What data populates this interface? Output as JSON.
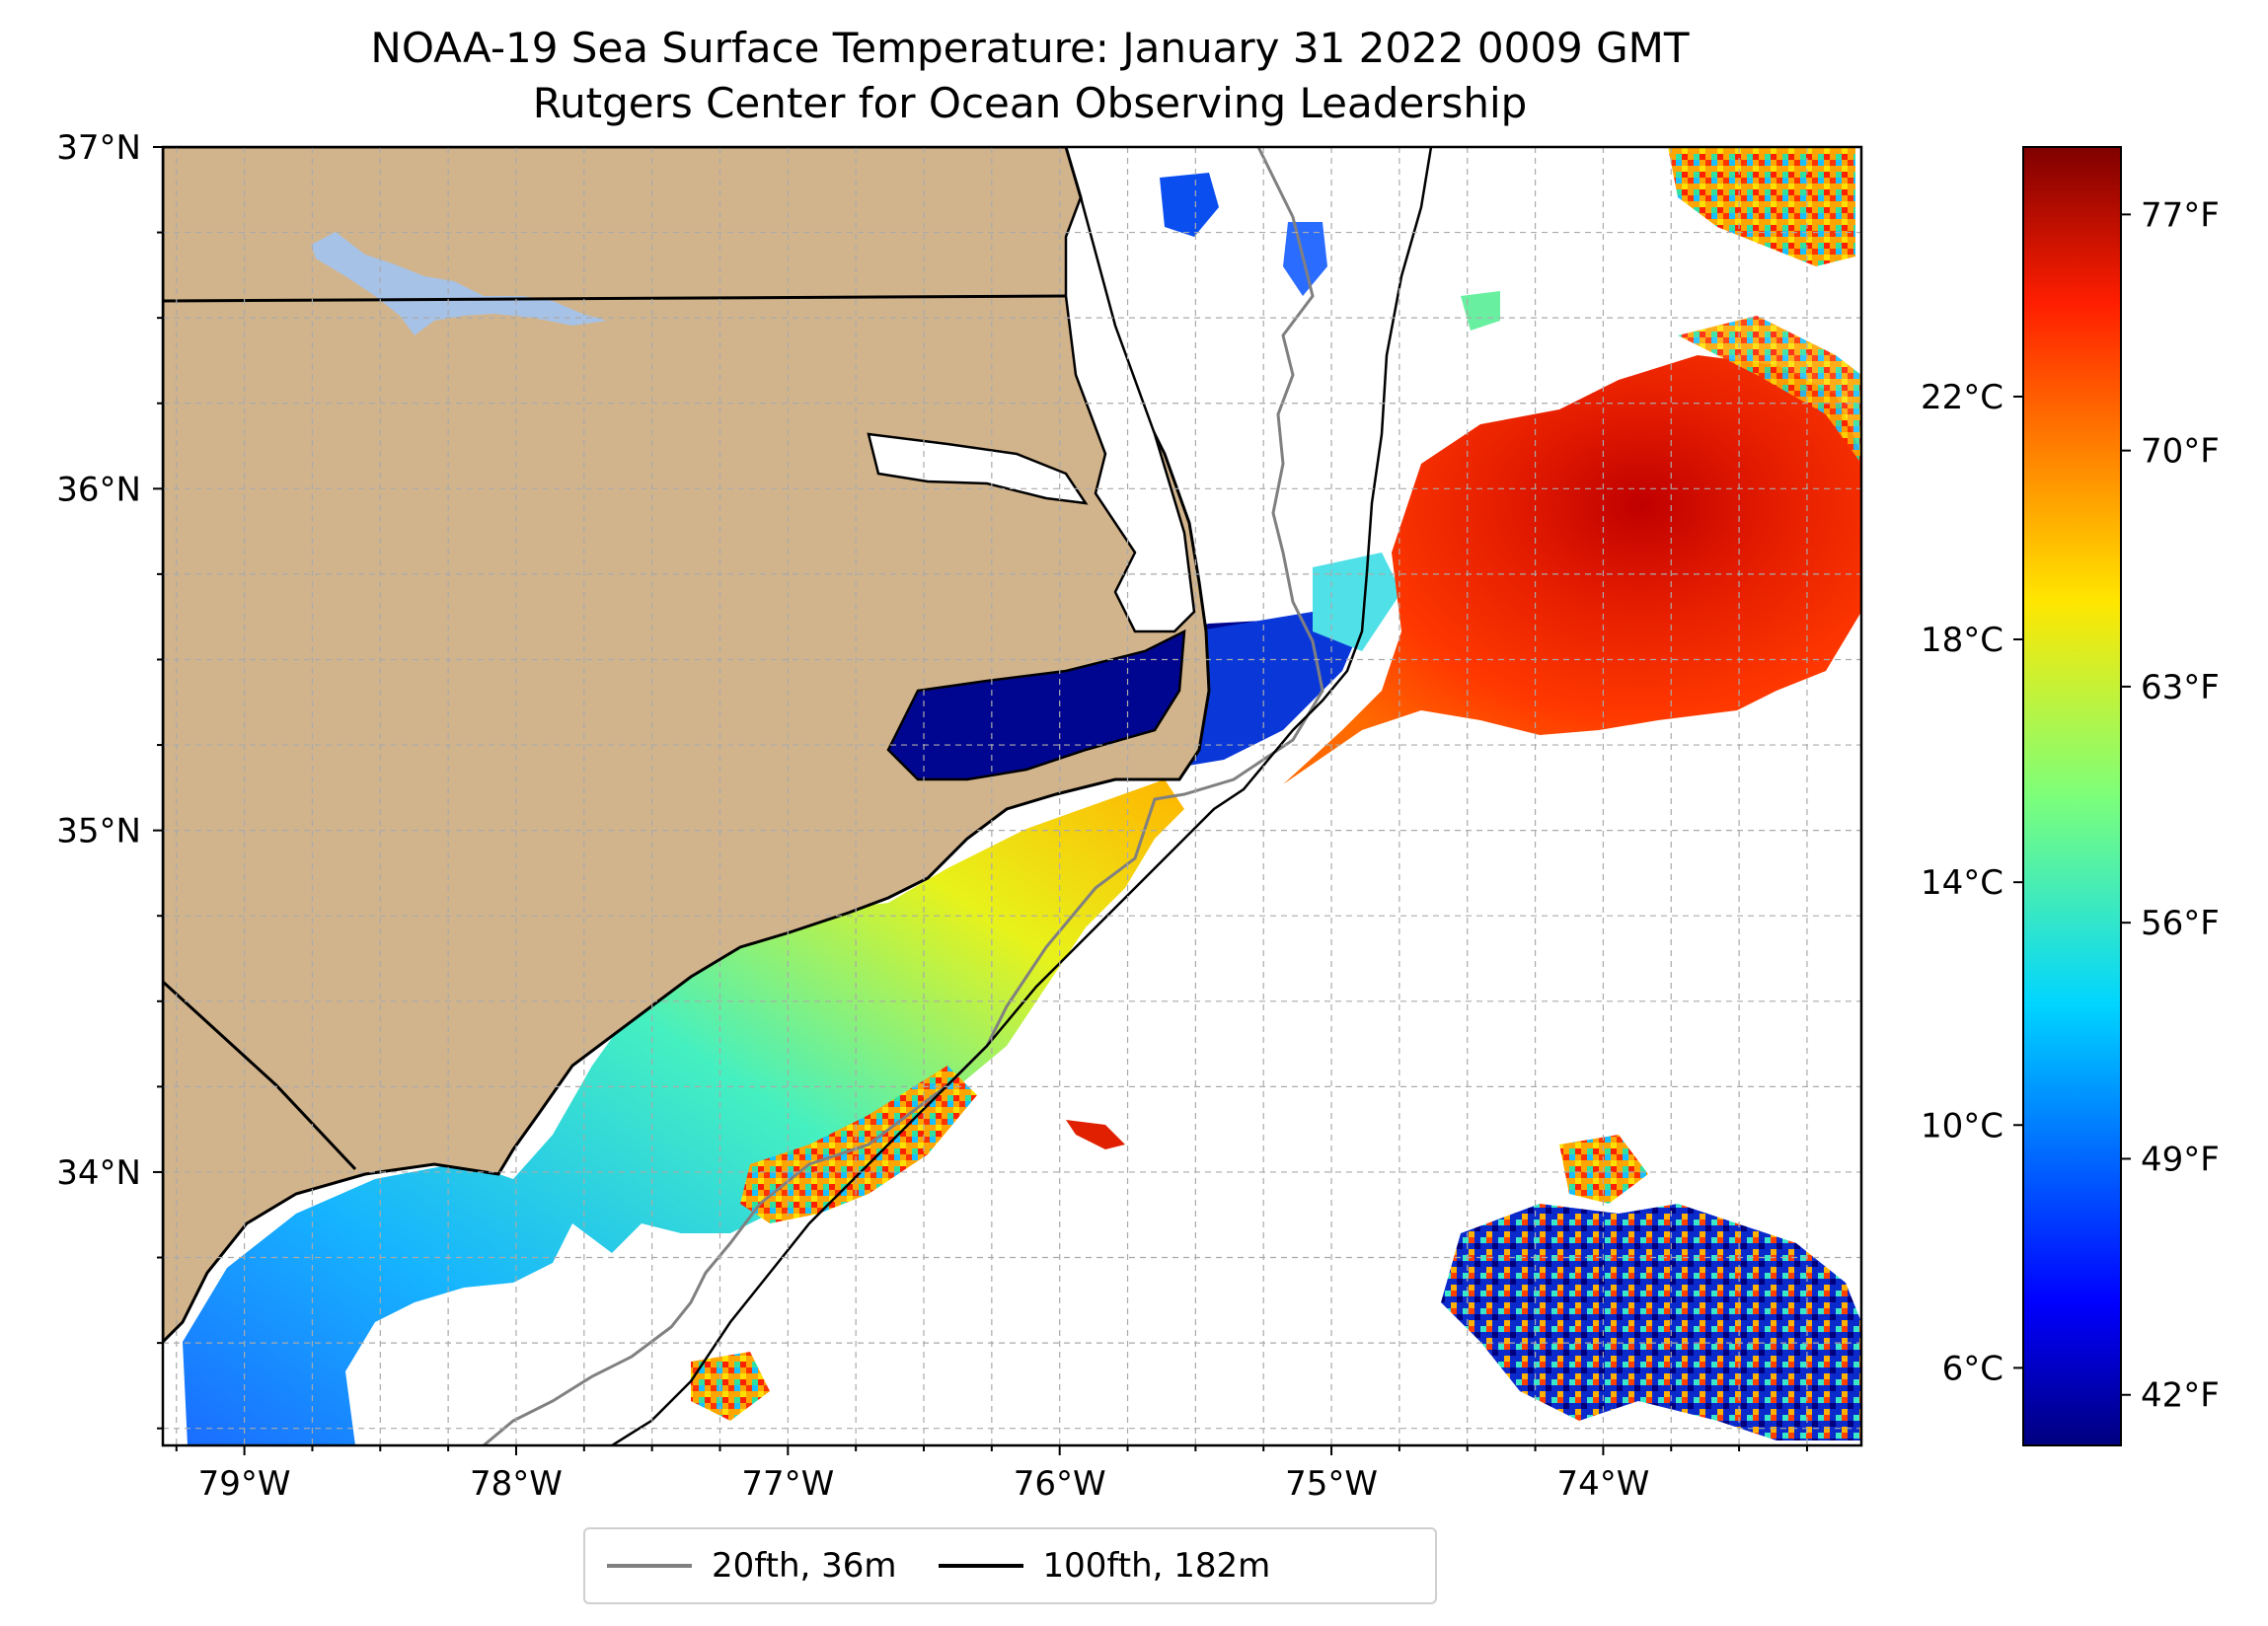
{
  "title": {
    "line1": "NOAA-19 Sea Surface Temperature: January 31 2022 0009 GMT",
    "line2": "Rutgers Center for Ocean Observing Leadership"
  },
  "map": {
    "projection": "PlateCarree",
    "lon_range": [
      -79.3,
      -73.05
    ],
    "lat_range": [
      33.2,
      37.0
    ],
    "grid": true,
    "lon_ticks": [
      "79°W",
      "78°W",
      "77°W",
      "76°W",
      "75°W",
      "74°W"
    ],
    "lat_ticks": [
      "37°N",
      "36°N",
      "35°N",
      "34°N"
    ],
    "land_color": "#d2b48c",
    "lake_color": "#a6c2e6",
    "ocean_nodata_color": "#ffffff"
  },
  "colorbar": {
    "colormap": "jet",
    "celsius_ticks": [
      "22°C",
      "18°C",
      "14°C",
      "10°C",
      "6°C"
    ],
    "fahrenheit_ticks": [
      "77°F",
      "70°F",
      "63°F",
      "56°F",
      "49°F",
      "42°F"
    ],
    "range_f": [
      40.5,
      79
    ]
  },
  "legend": {
    "items": [
      {
        "label": "20fth, 36m",
        "color": "#808080"
      },
      {
        "label": "100fth, 182m",
        "color": "#000000"
      }
    ]
  }
}
